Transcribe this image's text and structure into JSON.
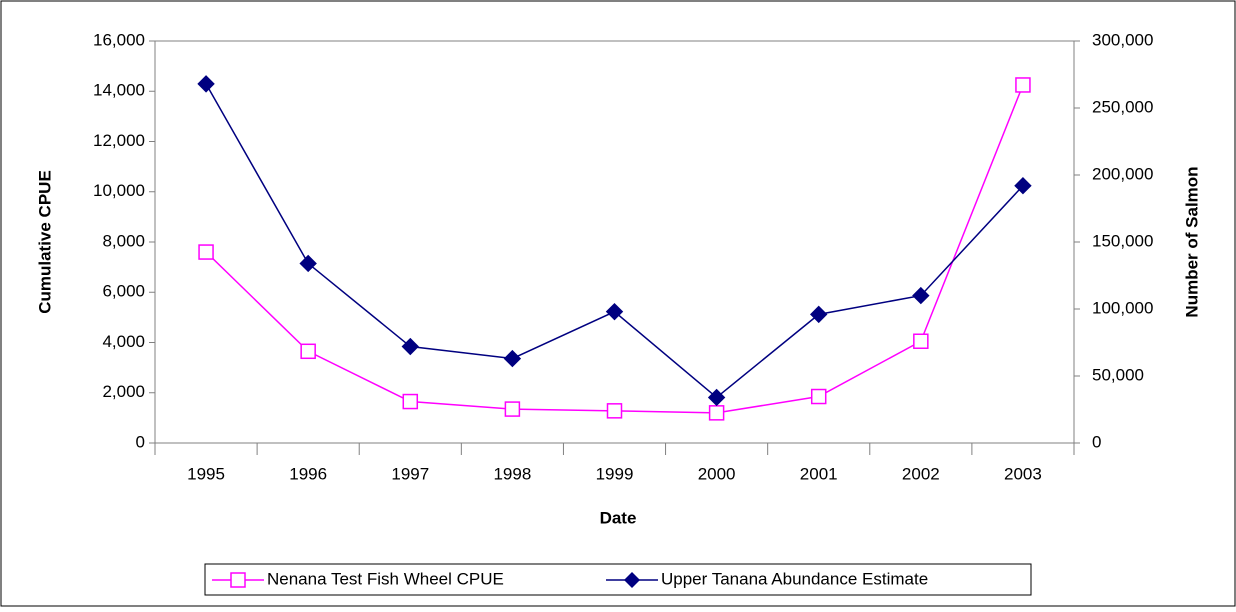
{
  "chart_data": {
    "type": "line",
    "x_label": "Date",
    "y_label": "Cumulative CPUE",
    "y2_label": "Number of Salmon",
    "categories": [
      "1995",
      "1996",
      "1997",
      "1998",
      "1999",
      "2000",
      "2001",
      "2002",
      "2003"
    ],
    "series": [
      {
        "name": "Nenana Test Fish Wheel CPUE",
        "color": "#ff00ff",
        "marker": "square",
        "axis": "y",
        "values": [
          7600,
          3650,
          1650,
          1350,
          1280,
          1200,
          1850,
          4050,
          14250
        ]
      },
      {
        "name": "Upper Tanana Abundance Estimate",
        "color": "#000080",
        "marker": "diamond",
        "axis": "y2",
        "values": [
          268000,
          134000,
          72000,
          63000,
          98000,
          34000,
          96000,
          110000,
          192000
        ]
      }
    ],
    "ylim": [
      0,
      16000
    ],
    "yticks": [
      0,
      {
        "value": 2000,
        "label": "2,000"
      },
      {
        "value": 4000,
        "label": "4,000"
      },
      {
        "value": 6000,
        "label": "6,000"
      },
      {
        "value": 8000,
        "label": "8,000"
      },
      {
        "value": 10000,
        "label": "10,000"
      },
      {
        "value": 12000,
        "label": "12,000"
      },
      {
        "value": 14000,
        "label": "14,000"
      },
      {
        "value": 16000,
        "label": "16,000"
      }
    ],
    "y2lim": [
      0,
      300000
    ],
    "y2ticks": [
      0,
      {
        "value": 50000,
        "label": "50,000"
      },
      {
        "value": 100000,
        "label": "100,000"
      },
      {
        "value": 150000,
        "label": "150,000"
      },
      {
        "value": 200000,
        "label": "200,000"
      },
      {
        "value": 250000,
        "label": "250,000"
      },
      {
        "value": 300000,
        "label": "300,000"
      }
    ],
    "grid": false,
    "legend": "bottom"
  }
}
